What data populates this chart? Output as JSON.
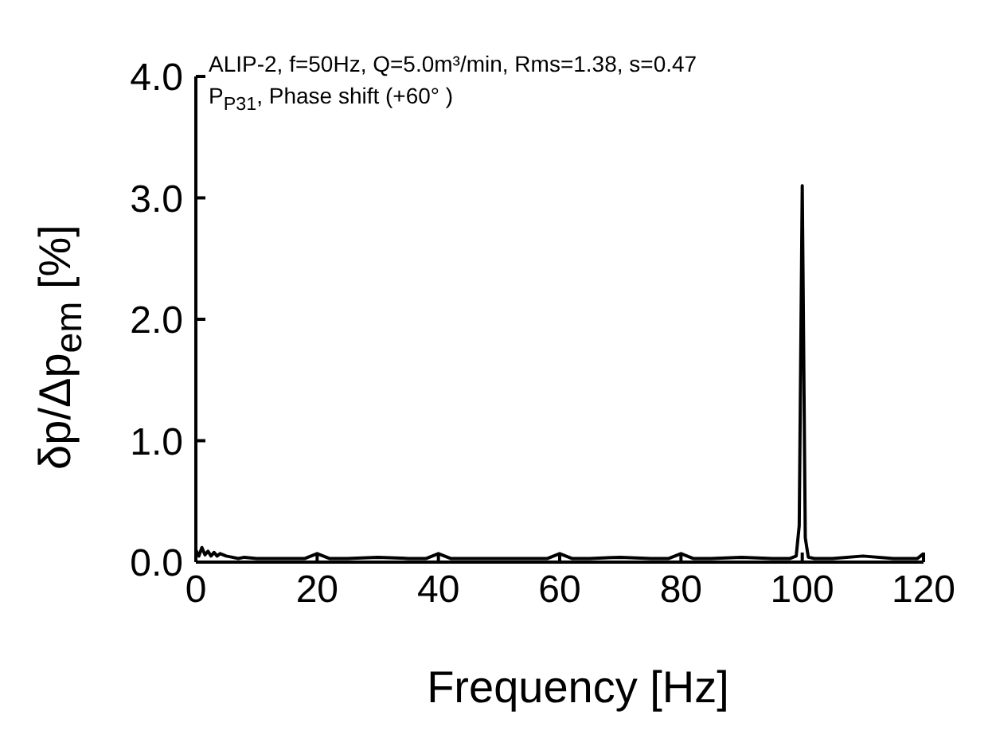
{
  "chart_data": {
    "type": "line",
    "xlabel": "Frequency [Hz]",
    "ylabel": "δp/Δp$_{em}$ [%]",
    "annotations": [
      "ALIP-2, f=50Hz, Q=5.0m³/min, Rms=1.38, s=0.47",
      "P$_{P31}$, Phase shift (+60°   )"
    ],
    "xlim": [
      0,
      120
    ],
    "xticks": [
      0,
      20,
      40,
      60,
      80,
      100,
      120
    ],
    "ylim": [
      0,
      4
    ],
    "yticks": [
      {
        "value": 0,
        "label": "0.0"
      },
      {
        "value": 1,
        "label": "1.0"
      },
      {
        "value": 2,
        "label": "2.0"
      },
      {
        "value": 3,
        "label": "3.0"
      },
      {
        "value": 4,
        "label": "4.0"
      }
    ],
    "grid": false,
    "legend": false,
    "marker": "none",
    "line_style": "solid",
    "series": [
      {
        "color": "#000000",
        "x": [
          0,
          0.5,
          1,
          1.5,
          2,
          2.5,
          3,
          3.5,
          4,
          5,
          6,
          7,
          8,
          10,
          12,
          15,
          18,
          20,
          22,
          25,
          30,
          35,
          38,
          40,
          42,
          45,
          50,
          55,
          58,
          60,
          62,
          65,
          70,
          75,
          78,
          80,
          82,
          85,
          90,
          95,
          98,
          99,
          99.5,
          100,
          100.5,
          101,
          102,
          105,
          110,
          115,
          119,
          120
        ],
        "values": [
          0.1,
          0.05,
          0.12,
          0.06,
          0.09,
          0.05,
          0.08,
          0.05,
          0.07,
          0.05,
          0.04,
          0.03,
          0.04,
          0.03,
          0.03,
          0.03,
          0.03,
          0.07,
          0.03,
          0.03,
          0.04,
          0.03,
          0.03,
          0.07,
          0.03,
          0.03,
          0.03,
          0.03,
          0.03,
          0.07,
          0.03,
          0.03,
          0.04,
          0.03,
          0.03,
          0.07,
          0.03,
          0.03,
          0.04,
          0.03,
          0.03,
          0.05,
          0.3,
          3.1,
          0.2,
          0.04,
          0.03,
          0.03,
          0.05,
          0.03,
          0.03,
          0.07
        ]
      }
    ]
  }
}
